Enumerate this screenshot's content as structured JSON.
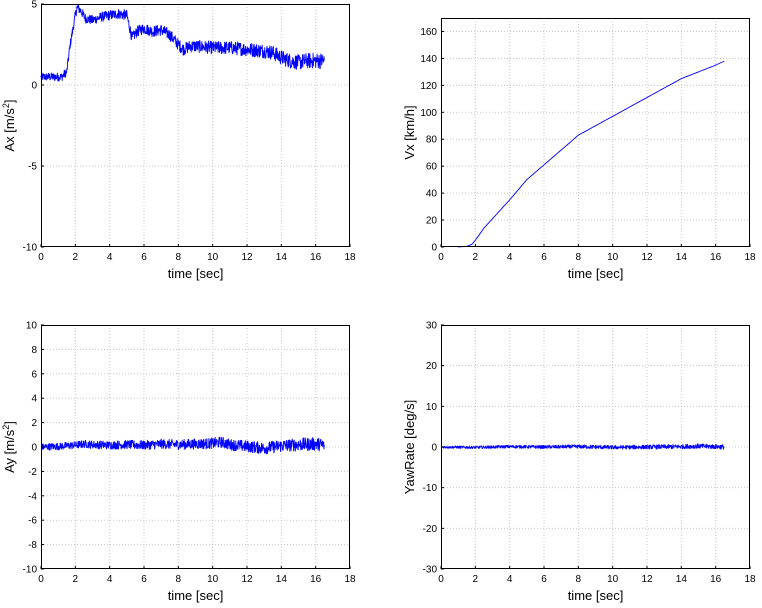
{
  "colors": {
    "series": "#0000ff",
    "grid": "#c8c8c8",
    "axis": "#000000"
  },
  "chart_data": [
    {
      "type": "line",
      "title": "",
      "xlabel": "time [sec]",
      "ylabel_base": "Ax [m/s",
      "ylabel_sup": "2",
      "ylabel_tail": "]",
      "xlim": [
        0,
        18
      ],
      "ylim": [
        -10,
        5
      ],
      "xticks": [
        0,
        2,
        4,
        6,
        8,
        10,
        12,
        14,
        16,
        18
      ],
      "yticks": [
        -10,
        -5,
        0,
        5
      ],
      "grid": true,
      "noise": 0.25,
      "series": [
        {
          "name": "Ax",
          "x": [
            0,
            1,
            1.2,
            1.5,
            1.7,
            2.0,
            2.1,
            2.3,
            2.6,
            3.0,
            3.5,
            4.0,
            4.5,
            5.0,
            5.3,
            5.6,
            6.0,
            6.5,
            7.0,
            7.5,
            8.0,
            8.3,
            8.7,
            9.0,
            10,
            11,
            12,
            13,
            13.5,
            14,
            14.5,
            15,
            15.5,
            16,
            16.5
          ],
          "y": [
            0.5,
            0.5,
            0.5,
            0.8,
            2.5,
            4.3,
            4.8,
            4.6,
            4.1,
            4.0,
            4.2,
            4.3,
            4.4,
            4.3,
            2.9,
            3.3,
            3.5,
            3.3,
            3.4,
            3.1,
            2.5,
            2.2,
            2.4,
            2.4,
            2.3,
            2.3,
            2.2,
            2.1,
            2.0,
            1.7,
            1.5,
            1.4,
            1.5,
            1.5,
            1.5
          ]
        }
      ]
    },
    {
      "type": "line",
      "title": "",
      "xlabel": "time [sec]",
      "ylabel_base": "Vx [km/h]",
      "ylabel_sup": "",
      "ylabel_tail": "",
      "xlim": [
        0,
        18
      ],
      "ylim": [
        0,
        170
      ],
      "xticks": [
        0,
        2,
        4,
        6,
        8,
        10,
        12,
        14,
        16,
        18
      ],
      "yticks": [
        0,
        20,
        40,
        60,
        80,
        100,
        120,
        140,
        160
      ],
      "grid": true,
      "noise": 0,
      "series": [
        {
          "name": "Vx",
          "x": [
            1.0,
            1.5,
            1.8,
            2.0,
            2.5,
            3.0,
            4.0,
            5.0,
            6.0,
            7.0,
            8.0,
            9.0,
            10,
            11,
            12,
            13,
            14,
            15,
            16,
            16.5
          ],
          "y": [
            0,
            0.5,
            2,
            5,
            14,
            21,
            35,
            50,
            61,
            72,
            83,
            90,
            97,
            104,
            111,
            118,
            125,
            130,
            135,
            138
          ]
        }
      ]
    },
    {
      "type": "line",
      "title": "",
      "xlabel": "time [sec]",
      "ylabel_base": "Ay [m/s",
      "ylabel_sup": "2",
      "ylabel_tail": "]",
      "xlim": [
        0,
        18
      ],
      "ylim": [
        -10,
        10
      ],
      "xticks": [
        0,
        2,
        4,
        6,
        8,
        10,
        12,
        14,
        16,
        18
      ],
      "yticks": [
        -10,
        -8,
        -6,
        -4,
        -2,
        0,
        2,
        4,
        6,
        8,
        10
      ],
      "grid": true,
      "noise": 0.28,
      "series": [
        {
          "name": "Ay",
          "x": [
            0,
            1,
            2,
            2.5,
            3,
            4,
            5,
            6,
            7,
            8,
            9,
            10,
            10.5,
            11,
            12,
            13,
            14,
            15,
            16,
            16.5
          ],
          "y": [
            0,
            0.05,
            0.15,
            0.25,
            0.2,
            0.15,
            0.2,
            0.15,
            0.25,
            0.2,
            0.25,
            0.3,
            0.4,
            0.2,
            0.05,
            -0.1,
            0.1,
            0.2,
            0.25,
            0.15
          ]
        }
      ]
    },
    {
      "type": "line",
      "title": "",
      "xlabel": "time [sec]",
      "ylabel_base": "YawRate [deg/s]",
      "ylabel_sup": "",
      "ylabel_tail": "",
      "xlim": [
        0,
        18
      ],
      "ylim": [
        -30,
        30
      ],
      "xticks": [
        0,
        2,
        4,
        6,
        8,
        10,
        12,
        14,
        16,
        18
      ],
      "yticks": [
        -30,
        -20,
        -10,
        0,
        10,
        20,
        30
      ],
      "grid": true,
      "noise": 0.3,
      "series": [
        {
          "name": "YawRate",
          "x": [
            0,
            2,
            4,
            6,
            8,
            10,
            12,
            14,
            15,
            16,
            16.5
          ],
          "y": [
            0,
            -0.1,
            0.1,
            0,
            0.1,
            -0.1,
            0,
            0.1,
            0.2,
            0.1,
            0
          ]
        }
      ]
    }
  ]
}
